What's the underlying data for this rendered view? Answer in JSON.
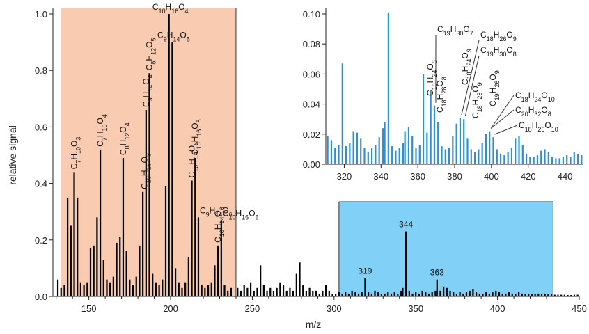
{
  "chart_data": [
    {
      "type": "bar",
      "name": "main",
      "xlabel": "m/z",
      "ylabel": "relative signal",
      "xlim": [
        128,
        450
      ],
      "ylim": [
        0,
        1.0
      ],
      "xticks": [
        150,
        200,
        250,
        300,
        350,
        400,
        450
      ],
      "yticks": [
        0.0,
        0.2,
        0.4,
        0.6,
        0.8,
        1.0
      ],
      "ytick_labels": [
        "0.0",
        "0.2",
        "0.4",
        "0.6",
        "0.8",
        "1.0"
      ],
      "highlight_regions": [
        {
          "x": [
            133,
            240
          ],
          "color": "#f9cbb0"
        },
        {
          "x": [
            303,
            434
          ],
          "color": "#80d0f8"
        }
      ],
      "peaks": [
        {
          "x": 131,
          "y": 0.06
        },
        {
          "x": 133,
          "y": 0.03
        },
        {
          "x": 135,
          "y": 0.04
        },
        {
          "x": 137,
          "y": 0.35
        },
        {
          "x": 139,
          "y": 0.25
        },
        {
          "x": 141,
          "y": 0.44
        },
        {
          "x": 143,
          "y": 0.35
        },
        {
          "x": 145,
          "y": 0.05
        },
        {
          "x": 147,
          "y": 0.04
        },
        {
          "x": 149,
          "y": 0.05
        },
        {
          "x": 151,
          "y": 0.17
        },
        {
          "x": 153,
          "y": 0.18
        },
        {
          "x": 155,
          "y": 0.28
        },
        {
          "x": 157,
          "y": 0.52
        },
        {
          "x": 159,
          "y": 0.13
        },
        {
          "x": 161,
          "y": 0.06
        },
        {
          "x": 163,
          "y": 0.05
        },
        {
          "x": 165,
          "y": 0.07
        },
        {
          "x": 167,
          "y": 0.19
        },
        {
          "x": 169,
          "y": 0.21
        },
        {
          "x": 171,
          "y": 0.49
        },
        {
          "x": 173,
          "y": 0.16
        },
        {
          "x": 175,
          "y": 0.06
        },
        {
          "x": 177,
          "y": 0.04
        },
        {
          "x": 179,
          "y": 0.07
        },
        {
          "x": 181,
          "y": 0.18
        },
        {
          "x": 183,
          "y": 0.37
        },
        {
          "x": 185,
          "y": 0.66
        },
        {
          "x": 187,
          "y": 0.79
        },
        {
          "x": 189,
          "y": 0.08
        },
        {
          "x": 191,
          "y": 0.05
        },
        {
          "x": 193,
          "y": 0.04
        },
        {
          "x": 195,
          "y": 0.06
        },
        {
          "x": 197,
          "y": 0.39
        },
        {
          "x": 199,
          "y": 1.0
        },
        {
          "x": 201,
          "y": 0.9
        },
        {
          "x": 203,
          "y": 0.1
        },
        {
          "x": 205,
          "y": 0.05
        },
        {
          "x": 207,
          "y": 0.03
        },
        {
          "x": 209,
          "y": 0.05
        },
        {
          "x": 211,
          "y": 0.14
        },
        {
          "x": 213,
          "y": 0.41
        },
        {
          "x": 215,
          "y": 0.49
        },
        {
          "x": 217,
          "y": 0.28
        },
        {
          "x": 219,
          "y": 0.04
        },
        {
          "x": 221,
          "y": 0.03
        },
        {
          "x": 223,
          "y": 0.04
        },
        {
          "x": 225,
          "y": 0.05
        },
        {
          "x": 227,
          "y": 0.11
        },
        {
          "x": 229,
          "y": 0.18
        },
        {
          "x": 231,
          "y": 0.27
        },
        {
          "x": 233,
          "y": 0.04
        },
        {
          "x": 235,
          "y": 0.02
        },
        {
          "x": 237,
          "y": 0.03
        },
        {
          "x": 241,
          "y": 0.03
        },
        {
          "x": 243,
          "y": 0.02
        },
        {
          "x": 245,
          "y": 0.04
        },
        {
          "x": 247,
          "y": 0.03
        },
        {
          "x": 249,
          "y": 0.05
        },
        {
          "x": 251,
          "y": 0.02
        },
        {
          "x": 253,
          "y": 0.03
        },
        {
          "x": 255,
          "y": 0.11
        },
        {
          "x": 257,
          "y": 0.04
        },
        {
          "x": 259,
          "y": 0.02
        },
        {
          "x": 261,
          "y": 0.03
        },
        {
          "x": 263,
          "y": 0.02
        },
        {
          "x": 265,
          "y": 0.03
        },
        {
          "x": 267,
          "y": 0.05
        },
        {
          "x": 269,
          "y": 0.04
        },
        {
          "x": 271,
          "y": 0.02
        },
        {
          "x": 273,
          "y": 0.03
        },
        {
          "x": 275,
          "y": 0.02
        },
        {
          "x": 277,
          "y": 0.08
        },
        {
          "x": 279,
          "y": 0.12
        },
        {
          "x": 281,
          "y": 0.04
        },
        {
          "x": 283,
          "y": 0.02
        },
        {
          "x": 285,
          "y": 0.03
        },
        {
          "x": 287,
          "y": 0.02
        },
        {
          "x": 289,
          "y": 0.02
        },
        {
          "x": 291,
          "y": 0.01
        },
        {
          "x": 293,
          "y": 0.02
        },
        {
          "x": 295,
          "y": 0.04
        },
        {
          "x": 297,
          "y": 0.02
        },
        {
          "x": 299,
          "y": 0.01
        },
        {
          "x": 301,
          "y": 0.01
        },
        {
          "x": 303,
          "y": 0.015
        },
        {
          "x": 305,
          "y": 0.01
        },
        {
          "x": 307,
          "y": 0.015
        },
        {
          "x": 309,
          "y": 0.01
        },
        {
          "x": 311,
          "y": 0.02
        },
        {
          "x": 313,
          "y": 0.015
        },
        {
          "x": 315,
          "y": 0.01
        },
        {
          "x": 317,
          "y": 0.015
        },
        {
          "x": 319,
          "y": 0.065
        },
        {
          "x": 321,
          "y": 0.015
        },
        {
          "x": 323,
          "y": 0.01
        },
        {
          "x": 325,
          "y": 0.02
        },
        {
          "x": 327,
          "y": 0.015
        },
        {
          "x": 329,
          "y": 0.01
        },
        {
          "x": 331,
          "y": 0.01
        },
        {
          "x": 333,
          "y": 0.015
        },
        {
          "x": 335,
          "y": 0.01
        },
        {
          "x": 337,
          "y": 0.015
        },
        {
          "x": 339,
          "y": 0.01
        },
        {
          "x": 341,
          "y": 0.02
        },
        {
          "x": 342,
          "y": 0.03
        },
        {
          "x": 344,
          "y": 0.23
        },
        {
          "x": 346,
          "y": 0.02
        },
        {
          "x": 348,
          "y": 0.01
        },
        {
          "x": 350,
          "y": 0.015
        },
        {
          "x": 352,
          "y": 0.01
        },
        {
          "x": 354,
          "y": 0.02
        },
        {
          "x": 356,
          "y": 0.015
        },
        {
          "x": 358,
          "y": 0.01
        },
        {
          "x": 360,
          "y": 0.015
        },
        {
          "x": 362,
          "y": 0.02
        },
        {
          "x": 363,
          "y": 0.06
        },
        {
          "x": 365,
          "y": 0.02
        },
        {
          "x": 367,
          "y": 0.035
        },
        {
          "x": 369,
          "y": 0.03
        },
        {
          "x": 371,
          "y": 0.02
        },
        {
          "x": 373,
          "y": 0.015
        },
        {
          "x": 375,
          "y": 0.01
        },
        {
          "x": 377,
          "y": 0.015
        },
        {
          "x": 379,
          "y": 0.01
        },
        {
          "x": 381,
          "y": 0.015
        },
        {
          "x": 383,
          "y": 0.02
        },
        {
          "x": 385,
          "y": 0.025
        },
        {
          "x": 387,
          "y": 0.015
        },
        {
          "x": 389,
          "y": 0.01
        },
        {
          "x": 391,
          "y": 0.01
        },
        {
          "x": 393,
          "y": 0.015
        },
        {
          "x": 395,
          "y": 0.01
        },
        {
          "x": 397,
          "y": 0.015
        },
        {
          "x": 399,
          "y": 0.02
        },
        {
          "x": 401,
          "y": 0.015
        },
        {
          "x": 403,
          "y": 0.01
        },
        {
          "x": 405,
          "y": 0.01
        },
        {
          "x": 407,
          "y": 0.015
        },
        {
          "x": 409,
          "y": 0.01
        },
        {
          "x": 411,
          "y": 0.01
        },
        {
          "x": 413,
          "y": 0.015
        },
        {
          "x": 415,
          "y": 0.01
        },
        {
          "x": 417,
          "y": 0.01
        },
        {
          "x": 419,
          "y": 0.01
        },
        {
          "x": 421,
          "y": 0.008
        },
        {
          "x": 423,
          "y": 0.008
        },
        {
          "x": 425,
          "y": 0.01
        },
        {
          "x": 427,
          "y": 0.008
        },
        {
          "x": 429,
          "y": 0.01
        },
        {
          "x": 431,
          "y": 0.008
        },
        {
          "x": 433,
          "y": 0.008
        },
        {
          "x": 435,
          "y": 0.006
        },
        {
          "x": 437,
          "y": 0.006
        },
        {
          "x": 439,
          "y": 0.006
        },
        {
          "x": 441,
          "y": 0.006
        },
        {
          "x": 443,
          "y": 0.005
        },
        {
          "x": 445,
          "y": 0.005
        },
        {
          "x": 447,
          "y": 0.006
        },
        {
          "x": 449,
          "y": 0.006
        }
      ],
      "formula_labels": [
        {
          "text": "C7H10O3",
          "x": 141,
          "y": 0.44,
          "rotated": true
        },
        {
          "text": "C7H10O4",
          "x": 157,
          "y": 0.52,
          "rotated": true
        },
        {
          "text": "C8H12O4",
          "x": 171,
          "y": 0.49,
          "rotated": true
        },
        {
          "text": "C10H16O3",
          "x": 184,
          "y": 0.37,
          "rotated": true
        },
        {
          "text": "C9H14O4",
          "x": 185,
          "y": 0.66,
          "rotated": true
        },
        {
          "text": "C8H12O5",
          "x": 187,
          "y": 0.79,
          "rotated": true
        },
        {
          "text": "C10H16O4",
          "x": 199,
          "y": 1.0,
          "rotated": false
        },
        {
          "text": "C9H14O5",
          "x": 201,
          "y": 0.9,
          "rotated": false
        },
        {
          "text": "C10H14O5",
          "x": 213,
          "y": 0.41,
          "rotated": true
        },
        {
          "text": "C10H16O5",
          "x": 215,
          "y": 0.49,
          "rotated": true
        },
        {
          "text": "C9H14O6",
          "x": 217,
          "y": 0.28,
          "rotated": false
        },
        {
          "text": "C10H14O6",
          "x": 229,
          "y": 0.18,
          "rotated": true
        },
        {
          "text": "C10H16O6",
          "x": 231,
          "y": 0.27,
          "rotated": false
        }
      ],
      "peak_labels": [
        {
          "text": "319",
          "x": 319,
          "y": 0.065
        },
        {
          "text": "344",
          "x": 344,
          "y": 0.23
        },
        {
          "text": "363",
          "x": 363,
          "y": 0.06
        }
      ]
    },
    {
      "type": "bar",
      "name": "inset",
      "xlim": [
        310,
        450
      ],
      "ylim": [
        0,
        0.1
      ],
      "xticks": [
        320,
        340,
        360,
        380,
        400,
        420,
        440
      ],
      "yticks": [
        0.0,
        0.02,
        0.04,
        0.06,
        0.08,
        0.1
      ],
      "ytick_labels": [
        "0.00",
        "0.02",
        "0.04",
        "0.06",
        "0.08",
        "0.10"
      ],
      "color": "#2f8fd0",
      "peaks": [
        {
          "x": 311,
          "y": 0.019
        },
        {
          "x": 313,
          "y": 0.016
        },
        {
          "x": 315,
          "y": 0.011
        },
        {
          "x": 317,
          "y": 0.013
        },
        {
          "x": 319,
          "y": 0.067
        },
        {
          "x": 321,
          "y": 0.012
        },
        {
          "x": 323,
          "y": 0.014
        },
        {
          "x": 325,
          "y": 0.022
        },
        {
          "x": 327,
          "y": 0.021
        },
        {
          "x": 329,
          "y": 0.017
        },
        {
          "x": 331,
          "y": 0.011
        },
        {
          "x": 333,
          "y": 0.008
        },
        {
          "x": 335,
          "y": 0.011
        },
        {
          "x": 337,
          "y": 0.013
        },
        {
          "x": 339,
          "y": 0.018
        },
        {
          "x": 341,
          "y": 0.024
        },
        {
          "x": 342,
          "y": 0.028
        },
        {
          "x": 344,
          "y": 0.101
        },
        {
          "x": 346,
          "y": 0.012
        },
        {
          "x": 348,
          "y": 0.009
        },
        {
          "x": 350,
          "y": 0.011
        },
        {
          "x": 352,
          "y": 0.014
        },
        {
          "x": 353,
          "y": 0.022
        },
        {
          "x": 355,
          "y": 0.025
        },
        {
          "x": 357,
          "y": 0.019
        },
        {
          "x": 359,
          "y": 0.011
        },
        {
          "x": 361,
          "y": 0.013
        },
        {
          "x": 363,
          "y": 0.06
        },
        {
          "x": 365,
          "y": 0.021
        },
        {
          "x": 367,
          "y": 0.049
        },
        {
          "x": 369,
          "y": 0.039
        },
        {
          "x": 371,
          "y": 0.028
        },
        {
          "x": 373,
          "y": 0.012
        },
        {
          "x": 375,
          "y": 0.01
        },
        {
          "x": 377,
          "y": 0.011
        },
        {
          "x": 379,
          "y": 0.019
        },
        {
          "x": 381,
          "y": 0.027
        },
        {
          "x": 383,
          "y": 0.031
        },
        {
          "x": 385,
          "y": 0.03
        },
        {
          "x": 387,
          "y": 0.017
        },
        {
          "x": 389,
          "y": 0.01
        },
        {
          "x": 391,
          "y": 0.008
        },
        {
          "x": 393,
          "y": 0.01
        },
        {
          "x": 395,
          "y": 0.014
        },
        {
          "x": 397,
          "y": 0.02
        },
        {
          "x": 399,
          "y": 0.022
        },
        {
          "x": 401,
          "y": 0.018
        },
        {
          "x": 403,
          "y": 0.01
        },
        {
          "x": 405,
          "y": 0.007
        },
        {
          "x": 407,
          "y": 0.006
        },
        {
          "x": 409,
          "y": 0.008
        },
        {
          "x": 411,
          "y": 0.011
        },
        {
          "x": 413,
          "y": 0.017
        },
        {
          "x": 415,
          "y": 0.019
        },
        {
          "x": 417,
          "y": 0.013
        },
        {
          "x": 419,
          "y": 0.007
        },
        {
          "x": 421,
          "y": 0.005
        },
        {
          "x": 423,
          "y": 0.005
        },
        {
          "x": 425,
          "y": 0.006
        },
        {
          "x": 427,
          "y": 0.009
        },
        {
          "x": 429,
          "y": 0.01
        },
        {
          "x": 431,
          "y": 0.008
        },
        {
          "x": 433,
          "y": 0.005
        },
        {
          "x": 435,
          "y": 0.004
        },
        {
          "x": 437,
          "y": 0.004
        },
        {
          "x": 439,
          "y": 0.005
        },
        {
          "x": 441,
          "y": 0.006
        },
        {
          "x": 443,
          "y": 0.005
        },
        {
          "x": 445,
          "y": 0.008
        },
        {
          "x": 447,
          "y": 0.007
        },
        {
          "x": 449,
          "y": 0.006
        }
      ],
      "formula_labels": [
        {
          "text": "C19H30O7",
          "x": 369,
          "y": 0.039
        },
        {
          "text": "C18H24O8",
          "x": 363,
          "y": 0.06,
          "rotated": true
        },
        {
          "text": "C18H28O8",
          "x": 368,
          "y": 0.049,
          "rotated": true
        },
        {
          "text": "C18H26O9",
          "x": 383,
          "y": 0.031
        },
        {
          "text": "C18H24O9",
          "x": 382,
          "y": 0.031,
          "rotated": true
        },
        {
          "text": "C19H30O8",
          "x": 385,
          "y": 0.03
        },
        {
          "text": "C18H28O9",
          "x": 385,
          "y": 0.03,
          "rotated": true
        },
        {
          "text": "C19H26O9",
          "x": 397,
          "y": 0.02,
          "rotated": true
        },
        {
          "text": "C18H24O10",
          "x": 399,
          "y": 0.022
        },
        {
          "text": "C20H32O8",
          "x": 399,
          "y": 0.022
        },
        {
          "text": "C18H26O10",
          "x": 401,
          "y": 0.018
        }
      ]
    }
  ]
}
